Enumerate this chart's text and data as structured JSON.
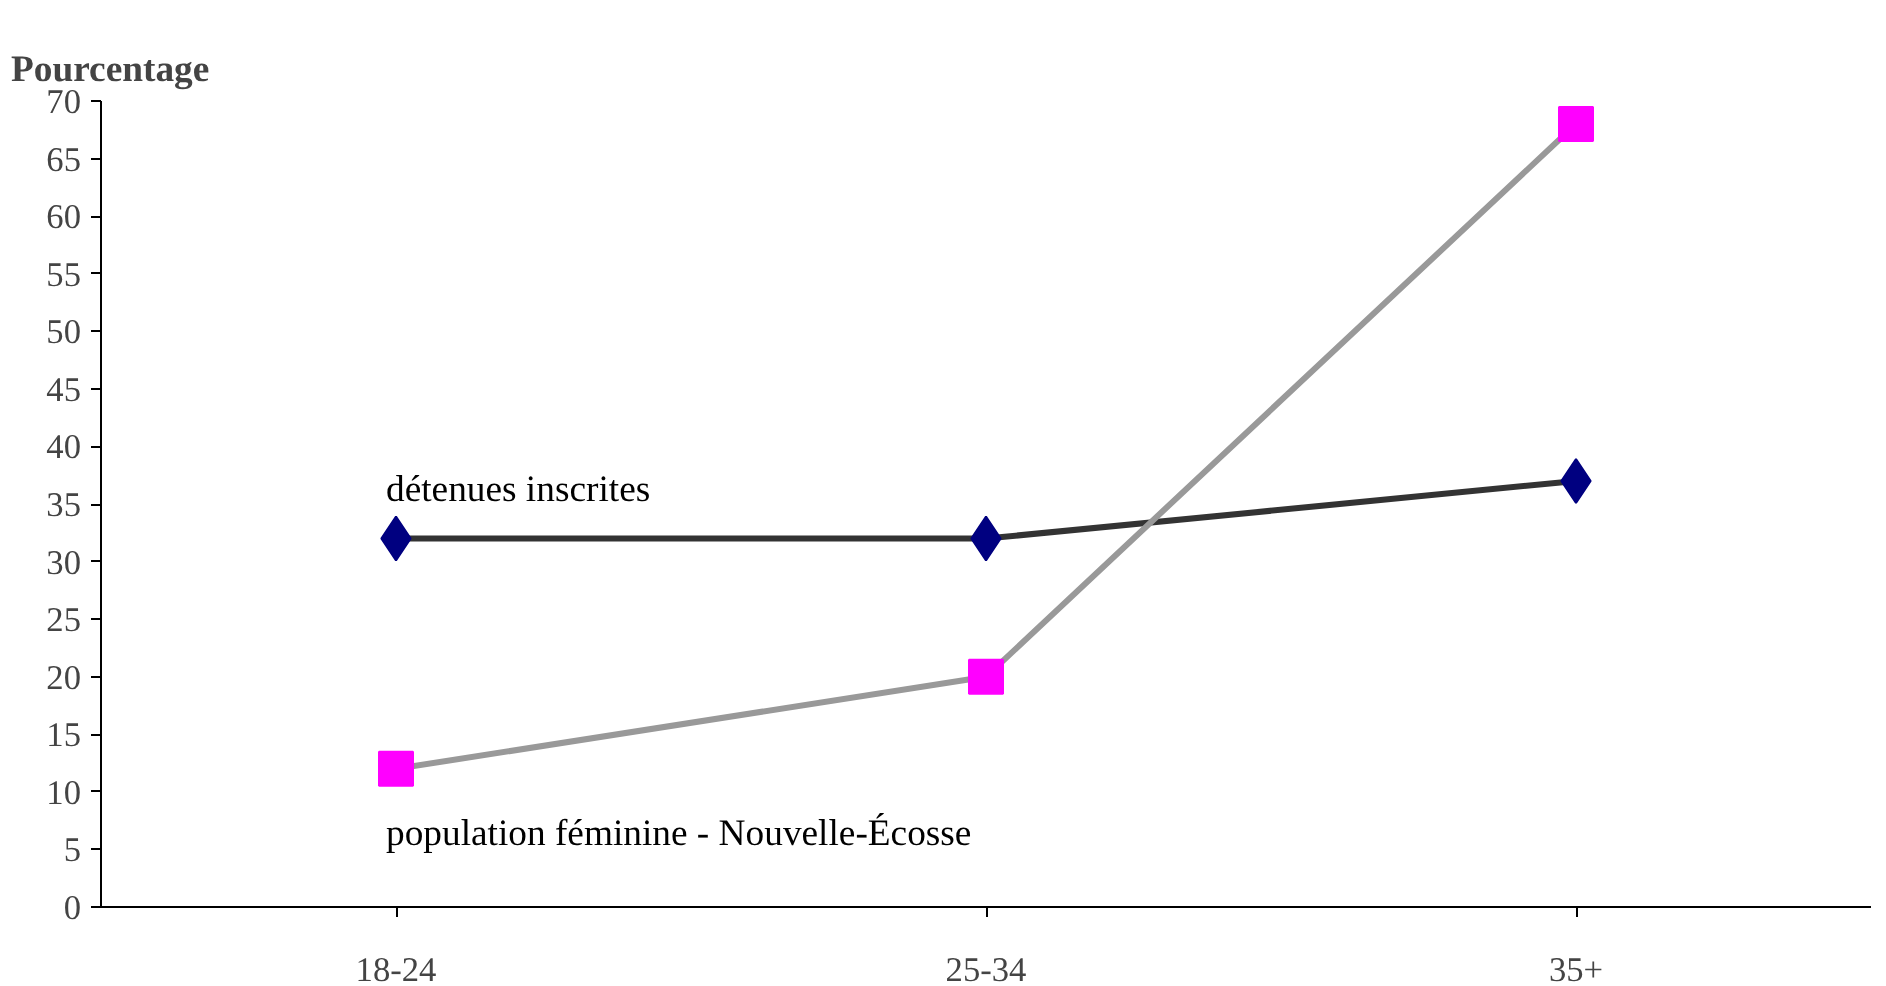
{
  "chart_data": {
    "type": "line",
    "title": "Pourcentage",
    "categories": [
      "18-24",
      "25-34",
      "35+"
    ],
    "series": [
      {
        "name": "détenues inscrites",
        "color": "#000080",
        "marker": "diamond",
        "values": [
          32,
          32,
          37
        ]
      },
      {
        "name": "population féminine - Nouvelle-Écosse",
        "color": "#ff00ff",
        "marker": "square",
        "values": [
          12,
          20,
          68
        ]
      }
    ],
    "ylim": [
      0,
      70
    ],
    "yticks": [
      0,
      5,
      10,
      15,
      20,
      25,
      30,
      35,
      40,
      45,
      50,
      55,
      60,
      65,
      70
    ],
    "grid": false
  }
}
